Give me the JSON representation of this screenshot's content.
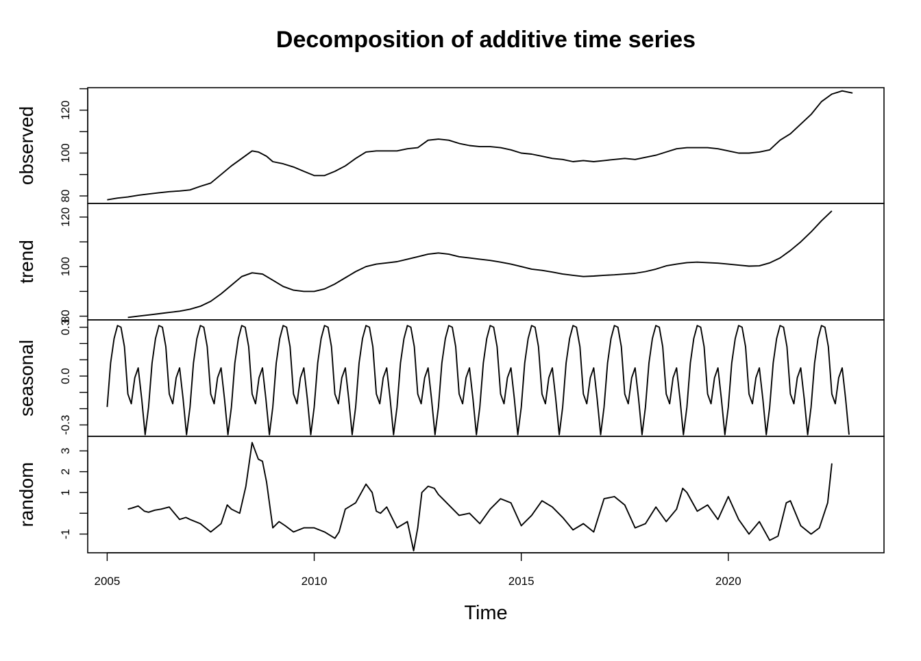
{
  "chart_data": {
    "type": "line",
    "title": "Decomposition of additive time series",
    "xlabel": "Time",
    "xlim": [
      2004.53,
      2023.76
    ],
    "x_ticks": [
      2005,
      2010,
      2015,
      2020
    ],
    "x_tick_labels": [
      "2005",
      "2010",
      "2015",
      "2020"
    ],
    "panels": [
      {
        "name": "observed",
        "label": "observed",
        "ylim": [
          76.5,
          130.5
        ],
        "y_ticks": [
          80,
          90,
          100,
          110,
          120,
          130
        ],
        "y_tick_labels": [
          "80",
          "",
          "100",
          "",
          "120",
          ""
        ],
        "x": [
          2005.0,
          2005.25,
          2005.5,
          2005.75,
          2006.0,
          2006.25,
          2006.5,
          2006.75,
          2007.0,
          2007.25,
          2007.5,
          2007.75,
          2008.0,
          2008.25,
          2008.5,
          2008.65,
          2008.85,
          2009.0,
          2009.25,
          2009.5,
          2009.75,
          2010.0,
          2010.25,
          2010.5,
          2010.75,
          2011.0,
          2011.25,
          2011.5,
          2011.75,
          2012.0,
          2012.25,
          2012.5,
          2012.75,
          2013.0,
          2013.25,
          2013.5,
          2013.75,
          2014.0,
          2014.25,
          2014.5,
          2014.75,
          2015.0,
          2015.25,
          2015.5,
          2015.75,
          2016.0,
          2016.25,
          2016.5,
          2016.75,
          2017.0,
          2017.25,
          2017.5,
          2017.75,
          2018.0,
          2018.25,
          2018.5,
          2018.75,
          2019.0,
          2019.25,
          2019.5,
          2019.75,
          2020.0,
          2020.25,
          2020.5,
          2020.75,
          2021.0,
          2021.25,
          2021.5,
          2021.75,
          2022.0,
          2022.25,
          2022.5,
          2022.75,
          2023.0
        ],
        "values": [
          78.2,
          79.0,
          79.5,
          80.3,
          80.9,
          81.5,
          82.0,
          82.3,
          82.8,
          84.5,
          86.0,
          90.0,
          94.0,
          97.5,
          101.0,
          100.5,
          98.5,
          96.0,
          95.0,
          93.5,
          91.5,
          89.5,
          89.5,
          91.5,
          94.0,
          97.5,
          100.5,
          101.0,
          101.0,
          101.0,
          102.0,
          102.5,
          106.0,
          106.5,
          106.0,
          104.5,
          103.5,
          103.0,
          103.0,
          102.5,
          101.5,
          100.0,
          99.5,
          98.5,
          97.5,
          97.0,
          96.0,
          96.5,
          96.0,
          96.5,
          97.0,
          97.5,
          97.0,
          98.0,
          99.0,
          100.5,
          102.0,
          102.5,
          102.5,
          102.5,
          102.0,
          101.0,
          100.0,
          100.0,
          100.5,
          101.5,
          106.0,
          109.0,
          113.5,
          118.0,
          124.0,
          127.5,
          129.0,
          128.0
        ]
      },
      {
        "name": "trend",
        "label": "trend",
        "ylim": [
          78.5,
          125.5
        ],
        "y_ticks": [
          80,
          90,
          100,
          110,
          120
        ],
        "y_tick_labels": [
          "80",
          "",
          "100",
          "",
          "120"
        ],
        "x": [
          2005.5,
          2005.75,
          2006.0,
          2006.25,
          2006.5,
          2006.75,
          2007.0,
          2007.25,
          2007.5,
          2007.75,
          2008.0,
          2008.25,
          2008.5,
          2008.75,
          2009.0,
          2009.25,
          2009.5,
          2009.75,
          2010.0,
          2010.25,
          2010.5,
          2010.75,
          2011.0,
          2011.25,
          2011.5,
          2011.75,
          2012.0,
          2012.25,
          2012.5,
          2012.75,
          2013.0,
          2013.25,
          2013.5,
          2013.75,
          2014.0,
          2014.25,
          2014.5,
          2014.75,
          2015.0,
          2015.25,
          2015.5,
          2015.75,
          2016.0,
          2016.25,
          2016.5,
          2016.75,
          2017.0,
          2017.25,
          2017.5,
          2017.75,
          2018.0,
          2018.25,
          2018.5,
          2018.75,
          2019.0,
          2019.25,
          2019.5,
          2019.75,
          2020.0,
          2020.25,
          2020.5,
          2020.75,
          2021.0,
          2021.25,
          2021.5,
          2021.75,
          2022.0,
          2022.25,
          2022.5
        ],
        "values": [
          79.5,
          80.0,
          80.5,
          81.0,
          81.5,
          82.0,
          82.8,
          84.0,
          86.0,
          89.0,
          92.5,
          96.0,
          97.5,
          97.0,
          94.5,
          92.0,
          90.5,
          90.0,
          90.0,
          91.0,
          93.0,
          95.5,
          98.0,
          100.0,
          101.0,
          101.5,
          102.0,
          103.0,
          104.0,
          105.0,
          105.5,
          105.0,
          104.0,
          103.5,
          103.0,
          102.5,
          101.8,
          101.0,
          100.0,
          99.0,
          98.5,
          97.8,
          97.0,
          96.5,
          96.0,
          96.2,
          96.5,
          96.7,
          97.0,
          97.3,
          98.0,
          99.0,
          100.3,
          101.0,
          101.6,
          101.8,
          101.6,
          101.4,
          101.0,
          100.6,
          100.2,
          100.3,
          101.5,
          103.5,
          106.5,
          110.0,
          114.0,
          118.5,
          122.5
        ]
      },
      {
        "name": "seasonal",
        "label": "seasonal",
        "ylim": [
          -0.37,
          0.345
        ],
        "y_ticks": [
          -0.3,
          -0.2,
          -0.1,
          0.0,
          0.1,
          0.2,
          0.3
        ],
        "y_tick_labels": [
          "-0.3",
          "",
          "",
          "0.0",
          "",
          "",
          "0.3"
        ],
        "pattern": [
          -0.19,
          0.08,
          0.23,
          0.31,
          0.3,
          0.18,
          -0.11,
          -0.17,
          -0.01,
          0.05,
          -0.14,
          -0.36
        ],
        "start": 2005.0,
        "frequency": 12,
        "periods": 18
      },
      {
        "name": "random",
        "label": "random",
        "ylim": [
          -1.9,
          3.7
        ],
        "y_ticks": [
          -1,
          0,
          1,
          2,
          3
        ],
        "y_tick_labels": [
          "-1",
          "",
          "1",
          "2",
          "3"
        ],
        "x": [
          2005.5,
          2005.6,
          2005.75,
          2005.9,
          2006.0,
          2006.15,
          2006.3,
          2006.5,
          2006.75,
          2006.9,
          2007.0,
          2007.25,
          2007.5,
          2007.75,
          2007.9,
          2008.0,
          2008.2,
          2008.35,
          2008.5,
          2008.65,
          2008.75,
          2008.85,
          2009.0,
          2009.15,
          2009.3,
          2009.5,
          2009.75,
          2010.0,
          2010.25,
          2010.5,
          2010.6,
          2010.75,
          2011.0,
          2011.25,
          2011.4,
          2011.5,
          2011.6,
          2011.75,
          2012.0,
          2012.25,
          2012.4,
          2012.5,
          2012.6,
          2012.75,
          2012.9,
          2013.0,
          2013.1,
          2013.25,
          2013.5,
          2013.75,
          2014.0,
          2014.25,
          2014.5,
          2014.75,
          2015.0,
          2015.25,
          2015.5,
          2015.75,
          2016.0,
          2016.25,
          2016.5,
          2016.75,
          2017.0,
          2017.25,
          2017.5,
          2017.75,
          2018.0,
          2018.25,
          2018.5,
          2018.75,
          2018.9,
          2019.0,
          2019.25,
          2019.5,
          2019.75,
          2020.0,
          2020.25,
          2020.5,
          2020.75,
          2021.0,
          2021.2,
          2021.4,
          2021.5,
          2021.75,
          2022.0,
          2022.2,
          2022.4,
          2022.5
        ],
        "values": [
          0.2,
          0.25,
          0.35,
          0.1,
          0.05,
          0.15,
          0.2,
          0.3,
          -0.3,
          -0.2,
          -0.3,
          -0.5,
          -0.9,
          -0.5,
          0.4,
          0.2,
          0.0,
          1.3,
          3.4,
          2.6,
          2.5,
          1.5,
          -0.7,
          -0.4,
          -0.6,
          -0.9,
          -0.7,
          -0.7,
          -0.9,
          -1.2,
          -0.9,
          0.2,
          0.5,
          1.4,
          1.0,
          0.1,
          0.0,
          0.3,
          -0.7,
          -0.4,
          -1.8,
          -0.7,
          1.0,
          1.3,
          1.2,
          0.9,
          0.7,
          0.4,
          -0.1,
          0.0,
          -0.5,
          0.2,
          0.7,
          0.5,
          -0.6,
          -0.1,
          0.6,
          0.3,
          -0.2,
          -0.8,
          -0.5,
          -0.9,
          0.7,
          0.8,
          0.4,
          -0.7,
          -0.5,
          0.3,
          -0.4,
          0.2,
          1.2,
          1.0,
          0.1,
          0.4,
          -0.3,
          0.8,
          -0.3,
          -1.0,
          -0.4,
          -1.3,
          -1.1,
          0.5,
          0.6,
          -0.6,
          -1.0,
          -0.7,
          0.5,
          2.4
        ]
      }
    ]
  }
}
